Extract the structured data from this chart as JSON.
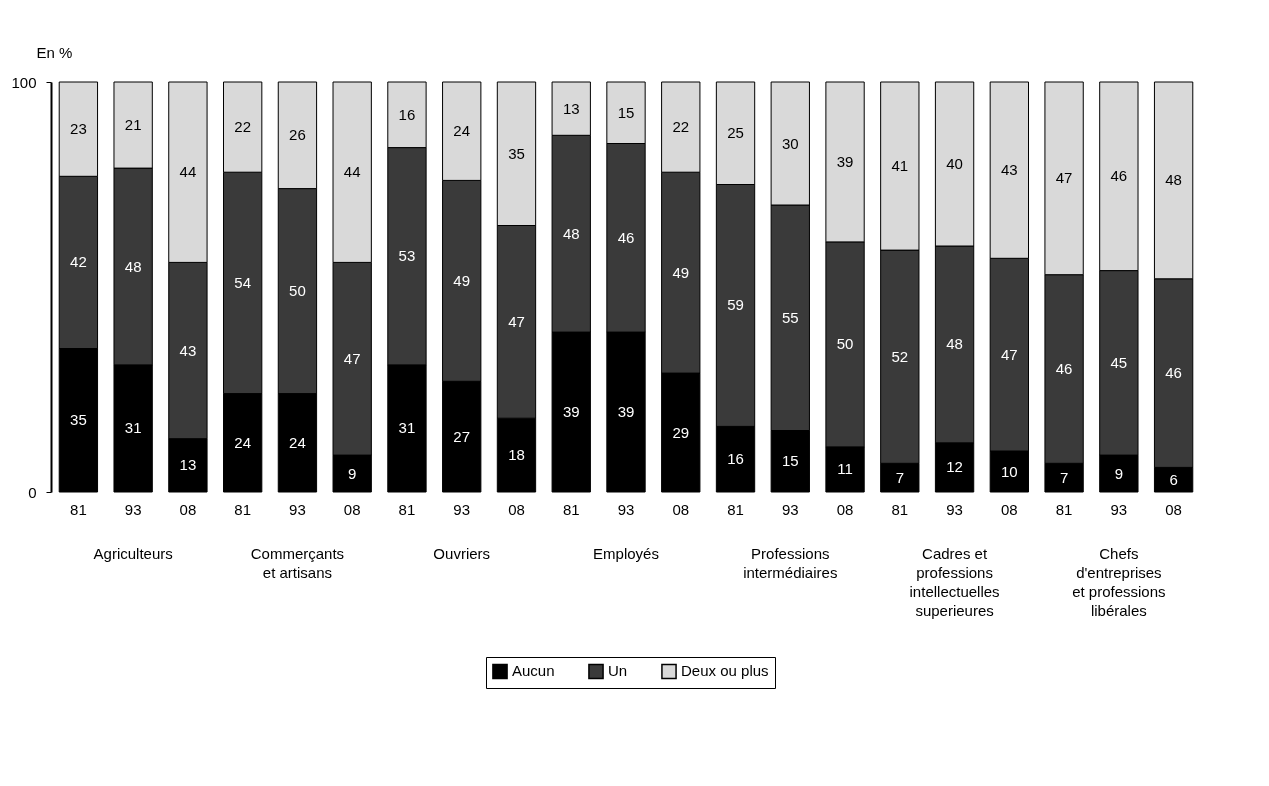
{
  "chart_data": {
    "type": "bar",
    "stacked": true,
    "ylabel": "En %",
    "categories": [
      "81",
      "93",
      "08",
      "81",
      "93",
      "08",
      "81",
      "93",
      "08",
      "81",
      "93",
      "08",
      "81",
      "93",
      "08",
      "81",
      "93",
      "08",
      "81",
      "93",
      "08"
    ],
    "annotations": [
      "Agriculteurs",
      "Commerçants\net artisans",
      "Ouvriers",
      "Employés",
      "Professions\nintermédiaires",
      "Cadres et\nprofessions\nintellectuelles\nsuperieures",
      "Chefs\nd'entreprises\net professions\nlibérales"
    ],
    "series": [
      {
        "name": "Aucun",
        "color": "#000000",
        "values": [
          35,
          31,
          13,
          24,
          24,
          9,
          31,
          27,
          18,
          39,
          39,
          29,
          16,
          15,
          11,
          7,
          12,
          10,
          7,
          9,
          6
        ]
      },
      {
        "name": "Un",
        "color": "#3a3a3a",
        "values": [
          42,
          48,
          43,
          54,
          50,
          47,
          53,
          49,
          47,
          48,
          46,
          49,
          59,
          55,
          50,
          52,
          48,
          47,
          46,
          45,
          46
        ]
      },
      {
        "name": "Deux ou plus",
        "color": "#d9d9d9",
        "values": [
          23,
          21,
          44,
          22,
          26,
          44,
          16,
          24,
          35,
          13,
          15,
          22,
          25,
          30,
          39,
          41,
          40,
          43,
          47,
          46,
          48
        ]
      }
    ],
    "ylim": [
      0,
      100
    ],
    "yticks": [
      0,
      100
    ],
    "data_labels": true,
    "legend": "bottom",
    "grid": false
  }
}
